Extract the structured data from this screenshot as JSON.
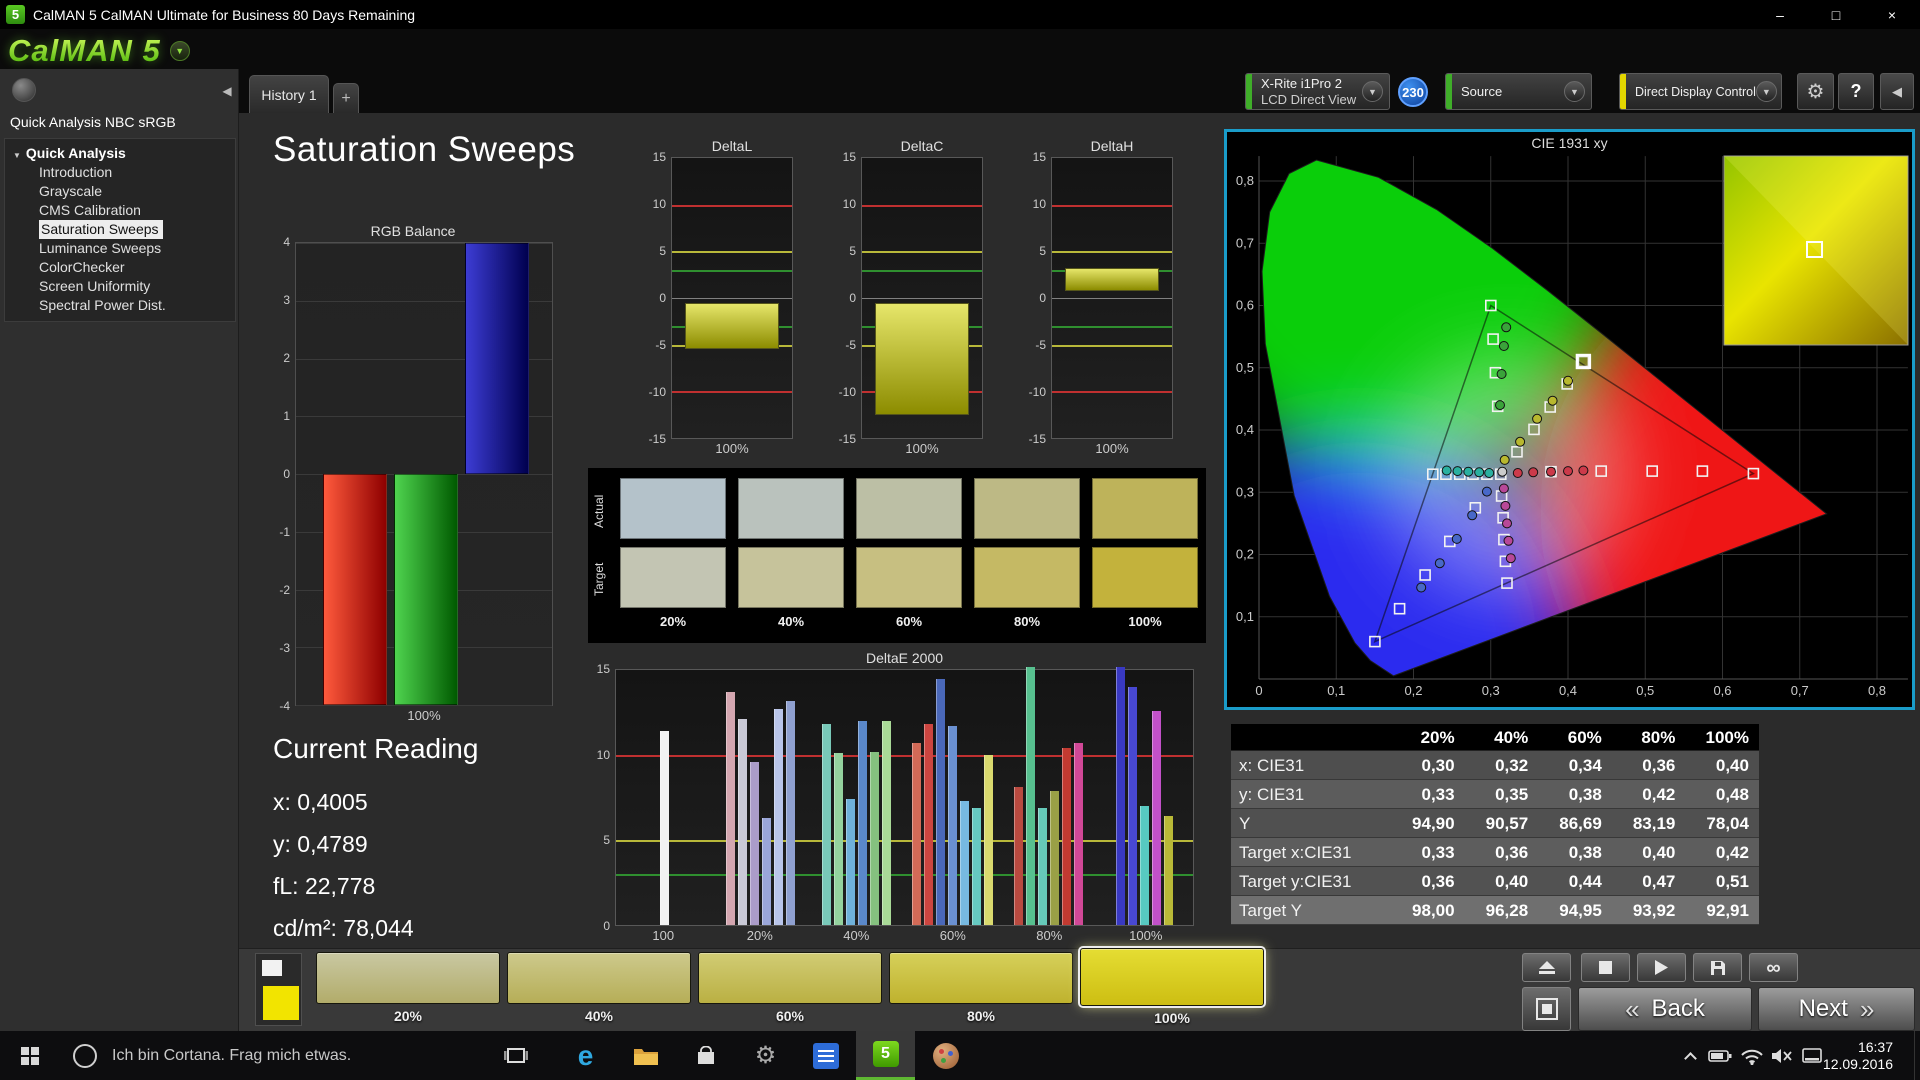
{
  "window": {
    "icon": "5",
    "title": "CalMAN 5 CalMAN Ultimate for Business 80 Days Remaining",
    "minimize": "–",
    "maximize": "□",
    "close": "×"
  },
  "logo": {
    "text": "CalMAN 5",
    "menu_arrow": "▼"
  },
  "tabs": {
    "history": "History 1",
    "add": "+"
  },
  "toolbar": {
    "meter": {
      "line1": "X-Rite i1Pro 2",
      "line2": "LCD Direct View",
      "arrow": "▼",
      "badge": "230",
      "stripe_color": "#3fae29"
    },
    "source": {
      "label": "Source",
      "arrow": "▼",
      "stripe_color": "#3fae29"
    },
    "display_control": {
      "label": "Direct Display Control",
      "arrow": "▼",
      "stripe_color": "#e3d600"
    },
    "settings_icon": "⚙",
    "help_icon": "?",
    "collapse_icon": "◀"
  },
  "sidebar": {
    "collapse_icon": "◀",
    "title": "Quick Analysis NBC sRGB",
    "root": "Quick Analysis",
    "expander": "▼",
    "items": [
      "Introduction",
      "Grayscale",
      "CMS Calibration",
      "Saturation Sweeps",
      "Luminance Sweeps",
      "ColorChecker",
      "Screen Uniformity",
      "Spectral Power Dist."
    ],
    "selected": "Saturation Sweeps"
  },
  "main": {
    "page_title": "Saturation Sweeps",
    "current_reading": {
      "title": "Current Reading",
      "lines": [
        "x: 0,4005",
        "y: 0,4789",
        "fL: 22,778",
        "cd/m²: 78,044"
      ]
    }
  },
  "swatches": {
    "row_labels": [
      "Actual",
      "Target"
    ],
    "col_labels": [
      "20%",
      "40%",
      "60%",
      "80%",
      "100%"
    ],
    "actual": [
      "#b4c2ca",
      "#bac2bd",
      "#bcbfa5",
      "#bdb985",
      "#beb35a"
    ],
    "target": [
      "#c3c5b3",
      "#c6c39b",
      "#c7bf81",
      "#c5b964",
      "#c3b23c"
    ]
  },
  "table": {
    "columns": [
      "20%",
      "40%",
      "60%",
      "80%",
      "100%"
    ],
    "rows": [
      {
        "label": "x: CIE31",
        "values": [
          "0,30",
          "0,32",
          "0,34",
          "0,36",
          "0,40"
        ]
      },
      {
        "label": "y: CIE31",
        "values": [
          "0,33",
          "0,35",
          "0,38",
          "0,42",
          "0,48"
        ]
      },
      {
        "label": "Y",
        "values": [
          "94,90",
          "90,57",
          "86,69",
          "83,19",
          "78,04"
        ]
      },
      {
        "label": "Target x:CIE31",
        "values": [
          "0,33",
          "0,36",
          "0,38",
          "0,40",
          "0,42"
        ]
      },
      {
        "label": "Target y:CIE31",
        "values": [
          "0,36",
          "0,40",
          "0,44",
          "0,47",
          "0,51"
        ]
      },
      {
        "label": "Target Y",
        "values": [
          "98,00",
          "96,28",
          "94,95",
          "93,92",
          "92,91"
        ]
      }
    ]
  },
  "patch_bar": {
    "preview": {
      "patch_color": "#f2e400"
    },
    "buttons": [
      {
        "label": "20%",
        "c1": "#c9c8a2",
        "c2": "#b2ac6a",
        "active": false
      },
      {
        "label": "40%",
        "c1": "#cdc98c",
        "c2": "#b6ae57",
        "active": false
      },
      {
        "label": "60%",
        "c1": "#d1cc74",
        "c2": "#bab043",
        "active": false
      },
      {
        "label": "80%",
        "c1": "#d6d05a",
        "c2": "#bfb22e",
        "active": false
      },
      {
        "label": "100%",
        "c1": "#e5dd33",
        "c2": "#cdbe12",
        "active": true
      }
    ]
  },
  "transport": {
    "loop_icon": "∞",
    "back": "Back",
    "next": "Next",
    "back_chevron": "«",
    "next_chevron": "»"
  },
  "taskbar": {
    "cortana_text": "Ich bin Cortana. Frag mich etwas.",
    "clock_time": "16:37",
    "clock_date": "12.09.2016"
  },
  "chart_data": [
    {
      "id": "rgb_balance",
      "type": "bar",
      "title": "RGB Balance",
      "categories": [
        "100%"
      ],
      "ylim": [
        -4,
        4
      ],
      "yticks": [
        4,
        3,
        2,
        1,
        0,
        -1,
        -2,
        -3,
        -4
      ],
      "series": [
        {
          "name": "Red",
          "value": -4,
          "color1": "#ff5a3c",
          "color2": "#8e0000"
        },
        {
          "name": "Green",
          "value": -4,
          "color1": "#4fd44f",
          "color2": "#005a00"
        },
        {
          "name": "Blue",
          "value": 4,
          "color1": "#3c3cd4",
          "color2": "#00004f"
        }
      ]
    },
    {
      "id": "deltaL",
      "type": "range_bar",
      "title": "DeltaL",
      "xlabel": "100%",
      "ylim": [
        -15,
        15
      ],
      "yticks": [
        15,
        10,
        5,
        0,
        -5,
        -10,
        -15
      ],
      "limits": {
        "red": 10,
        "yellow": 5,
        "green": 3
      },
      "range": [
        -5.5,
        -0.5
      ]
    },
    {
      "id": "deltaC",
      "type": "range_bar",
      "title": "DeltaC",
      "xlabel": "100%",
      "ylim": [
        -15,
        15
      ],
      "yticks": [
        15,
        10,
        5,
        0,
        -5,
        -10,
        -15
      ],
      "limits": {
        "red": 10,
        "yellow": 5,
        "green": 3
      },
      "range": [
        -12.5,
        -0.5
      ]
    },
    {
      "id": "deltaH",
      "type": "range_bar",
      "title": "DeltaH",
      "xlabel": "100%",
      "ylim": [
        -15,
        15
      ],
      "yticks": [
        15,
        10,
        5,
        0,
        -5,
        -10,
        -15
      ],
      "limits": {
        "red": 10,
        "yellow": 5,
        "green": 3
      },
      "range": [
        0.8,
        3.2
      ]
    },
    {
      "id": "deltae2000",
      "type": "bar",
      "title": "DeltaE 2000",
      "ylim": [
        0,
        15
      ],
      "yticks": [
        15,
        10,
        5,
        0
      ],
      "limits": {
        "red": 10,
        "yellow": 5,
        "green": 3
      },
      "groups": [
        {
          "label": "100",
          "bars": [
            [
              "#f2f2f2",
              11.4
            ]
          ]
        },
        {
          "label": "20%",
          "bars": [
            [
              "#d4a6b0",
              13.7
            ],
            [
              "#c9c9d6",
              12.1
            ],
            [
              "#ab9cc9",
              9.6
            ],
            [
              "#9aa6d9",
              6.3
            ],
            [
              "#b9c5ea",
              12.7
            ],
            [
              "#8fa0d0",
              13.2
            ]
          ]
        },
        {
          "label": "40%",
          "bars": [
            [
              "#79c9b9",
              11.8
            ],
            [
              "#94d29e",
              10.1
            ],
            [
              "#6fb1da",
              7.4
            ],
            [
              "#5a88c9",
              12.0
            ],
            [
              "#85c17f",
              10.2
            ],
            [
              "#a9da97",
              12.0
            ]
          ]
        },
        {
          "label": "60%",
          "bars": [
            [
              "#d26a57",
              10.7
            ],
            [
              "#cc4540",
              11.8
            ],
            [
              "#4a68b9",
              14.5
            ],
            [
              "#6a90d1",
              11.7
            ],
            [
              "#77b9e1",
              7.3
            ],
            [
              "#66c9c1",
              6.9
            ],
            [
              "#d9d96e",
              10.0
            ]
          ]
        },
        {
          "label": "80%",
          "bars": [
            [
              "#b94a40",
              8.1
            ],
            [
              "#57c08f",
              15.2
            ],
            [
              "#66c9b9",
              6.9
            ],
            [
              "#9aa046",
              7.9
            ],
            [
              "#c23a31",
              10.4
            ],
            [
              "#d14897",
              10.7
            ]
          ]
        },
        {
          "label": "100%",
          "bars": [
            [
              "#3939c2",
              15.2
            ],
            [
              "#4848d2",
              14.0
            ],
            [
              "#57c9c1",
              7.0
            ],
            [
              "#c251c9",
              12.6
            ],
            [
              "#b9b937",
              6.4
            ]
          ]
        }
      ]
    },
    {
      "id": "cie",
      "type": "scatter",
      "title": "CIE 1931 xy",
      "xlim": [
        0,
        0.85
      ],
      "ylim": [
        0,
        0.88
      ],
      "tick_labels": [
        "0",
        "0,1",
        "0,2",
        "0,3",
        "0,4",
        "0,5",
        "0,6",
        "0,7",
        "0,8"
      ],
      "gamut_triangle": [
        [
          0.64,
          0.33
        ],
        [
          0.3,
          0.6
        ],
        [
          0.15,
          0.06
        ]
      ],
      "targets": [
        [
          0.313,
          0.329
        ],
        [
          0.378,
          0.333
        ],
        [
          0.443,
          0.334
        ],
        [
          0.509,
          0.334
        ],
        [
          0.574,
          0.334
        ],
        [
          0.64,
          0.33
        ],
        [
          0.309,
          0.438
        ],
        [
          0.306,
          0.492
        ],
        [
          0.303,
          0.546
        ],
        [
          0.3,
          0.6
        ],
        [
          0.334,
          0.365
        ],
        [
          0.356,
          0.401
        ],
        [
          0.377,
          0.437
        ],
        [
          0.399,
          0.474
        ],
        [
          0.42,
          0.51
        ],
        [
          0.295,
          0.329
        ],
        [
          0.277,
          0.329
        ],
        [
          0.26,
          0.329
        ],
        [
          0.242,
          0.329
        ],
        [
          0.225,
          0.329
        ],
        [
          0.28,
          0.275
        ],
        [
          0.247,
          0.221
        ],
        [
          0.215,
          0.167
        ],
        [
          0.182,
          0.113
        ],
        [
          0.15,
          0.06
        ],
        [
          0.314,
          0.294
        ],
        [
          0.316,
          0.259
        ],
        [
          0.317,
          0.224
        ],
        [
          0.319,
          0.189
        ],
        [
          0.321,
          0.154
        ]
      ],
      "highlight": [
        0.42,
        0.51
      ],
      "measured": [
        [
          0.318,
          0.352,
          "#b8b82e"
        ],
        [
          0.338,
          0.381,
          "#b8b82e"
        ],
        [
          0.36,
          0.418,
          "#b8b82e"
        ],
        [
          0.38,
          0.447,
          "#b8b82e"
        ],
        [
          0.4,
          0.479,
          "#b8b82e"
        ],
        [
          0.312,
          0.44,
          "#3aa33a"
        ],
        [
          0.314,
          0.49,
          "#3aa33a"
        ],
        [
          0.317,
          0.535,
          "#3aa33a"
        ],
        [
          0.32,
          0.565,
          "#3aa33a"
        ],
        [
          0.335,
          0.331,
          "#cc3a4a"
        ],
        [
          0.355,
          0.332,
          "#cc3a4a"
        ],
        [
          0.378,
          0.333,
          "#cc3a4a"
        ],
        [
          0.4,
          0.334,
          "#cc3a4a"
        ],
        [
          0.42,
          0.335,
          "#cc3a4a"
        ],
        [
          0.298,
          0.331,
          "#2ab0a0"
        ],
        [
          0.285,
          0.332,
          "#2ab0a0"
        ],
        [
          0.271,
          0.333,
          "#2ab0a0"
        ],
        [
          0.257,
          0.334,
          "#2ab0a0"
        ],
        [
          0.243,
          0.335,
          "#2ab0a0"
        ],
        [
          0.295,
          0.301,
          "#4868c8"
        ],
        [
          0.276,
          0.263,
          "#4868c8"
        ],
        [
          0.256,
          0.225,
          "#4868c8"
        ],
        [
          0.234,
          0.186,
          "#4868c8"
        ],
        [
          0.21,
          0.147,
          "#4868c8"
        ],
        [
          0.317,
          0.306,
          "#b84898"
        ],
        [
          0.319,
          0.278,
          "#b84898"
        ],
        [
          0.321,
          0.25,
          "#b84898"
        ],
        [
          0.323,
          0.222,
          "#b84898"
        ],
        [
          0.326,
          0.194,
          "#b84898"
        ],
        [
          0.315,
          0.333,
          "#cccccc"
        ]
      ]
    }
  ]
}
